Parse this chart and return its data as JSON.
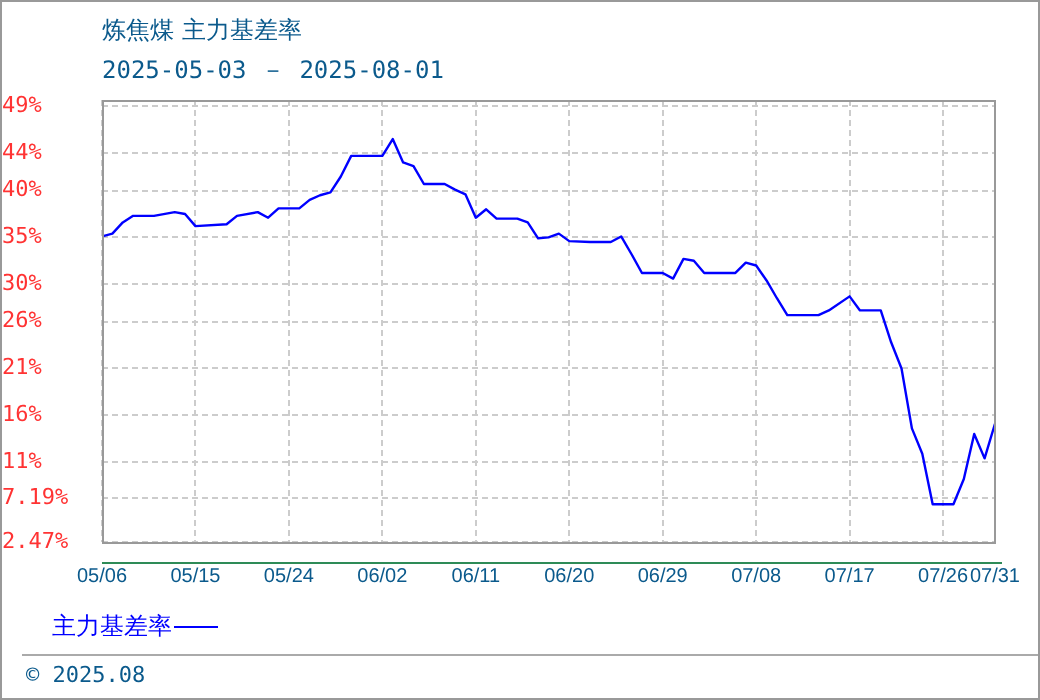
{
  "chart_data": {
    "type": "line",
    "title": "炼焦煤 主力基差率",
    "subtitle": "2025-05-03 － 2025-08-01",
    "x": [
      "--05-06",
      "--05-07",
      "--05-08",
      "--05-09",
      "--05-11",
      "--05-13",
      "--05-14",
      "--05-15",
      "--05-18",
      "--05-19",
      "--05-21",
      "--05-22",
      "--05-23",
      "--05-25",
      "--05-26",
      "--05-27",
      "--05-28",
      "--05-29",
      "--05-30",
      "--06-02",
      "--06-03",
      "--06-04",
      "--06-05",
      "--06-06",
      "--06-08",
      "--06-09",
      "--06-10",
      "--06-11",
      "--06-12",
      "--06-13",
      "--06-15",
      "--06-16",
      "--06-17",
      "--06-18",
      "--06-19",
      "--06-20",
      "--06-22",
      "--06-24",
      "--06-25",
      "--06-26",
      "--06-27",
      "--06-29",
      "--06-30",
      "--07-01",
      "--07-02",
      "--07-03",
      "--07-06",
      "--07-07",
      "--07-08",
      "--07-09",
      "--07-10",
      "--07-11",
      "--07-14",
      "--07-15",
      "--07-17",
      "--07-18",
      "--07-20",
      "--07-21",
      "--07-22",
      "--07-23",
      "--07-24",
      "--07-25",
      "--07-27",
      "--07-28",
      "--07-29",
      "--07-30",
      "--07-31"
    ],
    "series": [
      {
        "name": "主力基差率",
        "color": "#0000ff",
        "values": [
          35.1,
          35.4,
          36.6,
          37.3,
          37.3,
          37.7,
          37.5,
          36.2,
          36.4,
          37.3,
          37.7,
          37.1,
          38.1,
          38.1,
          39.0,
          39.5,
          39.8,
          41.5,
          43.7,
          43.7,
          45.5,
          43.0,
          42.6,
          40.7,
          40.7,
          40.1,
          39.6,
          37.1,
          38.0,
          37.0,
          37.0,
          36.6,
          34.9,
          35.0,
          35.4,
          34.6,
          34.5,
          34.5,
          35.1,
          33.2,
          31.2,
          31.2,
          30.6,
          32.7,
          32.5,
          31.2,
          31.2,
          32.3,
          32.0,
          30.4,
          28.5,
          26.7,
          26.7,
          27.2,
          28.7,
          27.2,
          27.2,
          23.8,
          21.0,
          14.6,
          11.9,
          6.5,
          6.5,
          9.2,
          14.0,
          11.4,
          15.1
        ]
      }
    ],
    "xlim": [
      "--05-06",
      "--07-31"
    ],
    "xticks": [
      {
        "value": "--05-06",
        "label": "05/06"
      },
      {
        "value": "--05-15",
        "label": "05/15"
      },
      {
        "value": "--05-24",
        "label": "05/24"
      },
      {
        "value": "--06-02",
        "label": "06/02"
      },
      {
        "value": "--06-11",
        "label": "06/11"
      },
      {
        "value": "--06-20",
        "label": "06/20"
      },
      {
        "value": "--06-29",
        "label": "06/29"
      },
      {
        "value": "--07-08",
        "label": "07/08"
      },
      {
        "value": "--07-17",
        "label": "07/17"
      },
      {
        "value": "--07-26",
        "label": "07/26"
      },
      {
        "value": "--07-31",
        "label": "07/31"
      }
    ],
    "ylim": [
      2.47,
      49.67
    ],
    "yticks": [
      {
        "value": 2.47,
        "label": "2.47%"
      },
      {
        "value": 7.19,
        "label": "7.19%"
      },
      {
        "value": 11,
        "label": "11%"
      },
      {
        "value": 16,
        "label": "16%"
      },
      {
        "value": 21,
        "label": "21%"
      },
      {
        "value": 26,
        "label": "26%"
      },
      {
        "value": 30,
        "label": "30%"
      },
      {
        "value": 35,
        "label": "35%"
      },
      {
        "value": 40,
        "label": "40%"
      },
      {
        "value": 44,
        "label": "44%"
      },
      {
        "value": 49,
        "label": "49%"
      }
    ],
    "grid": true,
    "legend": "bottom left",
    "marker": "none",
    "line_style": "solid",
    "annotations": [
      "© 2025.08"
    ]
  }
}
